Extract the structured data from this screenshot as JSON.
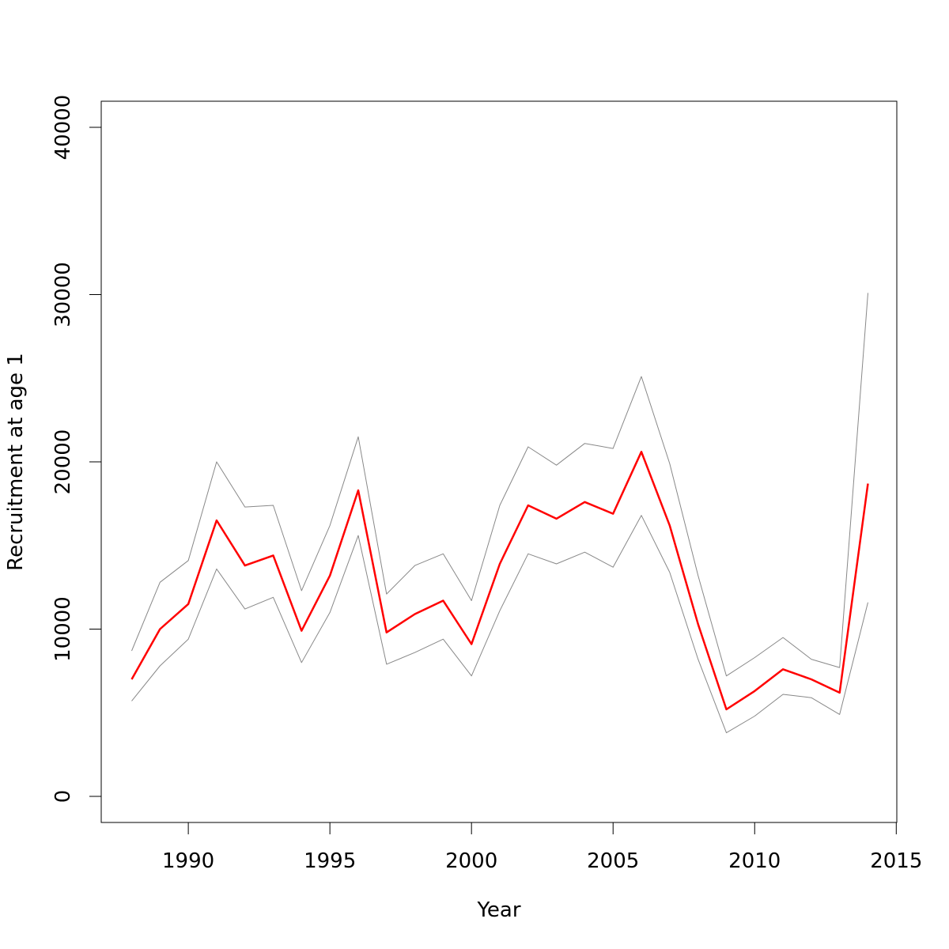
{
  "chart_data": {
    "type": "line",
    "title": "",
    "xlabel": "Year",
    "ylabel": "Recruitment at age 1",
    "xlim": [
      1988,
      2014
    ],
    "ylim": [
      0,
      40000
    ],
    "x_ticks": [
      1990,
      1995,
      2000,
      2005,
      2010,
      2015
    ],
    "y_ticks": [
      0,
      10000,
      20000,
      30000,
      40000
    ],
    "grid": false,
    "legend": "none",
    "x": [
      1988,
      1989,
      1990,
      1991,
      1992,
      1993,
      1994,
      1995,
      1996,
      1997,
      1998,
      1999,
      2000,
      2001,
      2002,
      2003,
      2004,
      2005,
      2006,
      2007,
      2008,
      2009,
      2010,
      2011,
      2012,
      2013,
      2014
    ],
    "series": [
      {
        "color": "#ff0000",
        "values": [
          7000,
          10000,
          11500,
          16500,
          13800,
          14400,
          9900,
          13200,
          18300,
          9800,
          10900,
          11700,
          9100,
          13900,
          17400,
          16600,
          17600,
          16900,
          20600,
          16200,
          10300,
          5200,
          6300,
          7600,
          7000,
          6200,
          18700
        ]
      },
      {
        "color": "#888888",
        "values": [
          8700,
          12800,
          14100,
          20000,
          17300,
          17400,
          12300,
          16200,
          21500,
          12100,
          13800,
          14500,
          11700,
          17400,
          20900,
          19800,
          21100,
          20800,
          25100,
          19900,
          13200,
          7200,
          8300,
          9500,
          8200,
          7700,
          30100
        ]
      },
      {
        "color": "#888888",
        "values": [
          5700,
          7800,
          9400,
          13600,
          11200,
          11900,
          8000,
          11000,
          15600,
          7900,
          8600,
          9400,
          7200,
          11100,
          14500,
          13900,
          14600,
          13700,
          16800,
          13400,
          8200,
          3800,
          4800,
          6100,
          5900,
          4900,
          11600
        ]
      }
    ]
  }
}
